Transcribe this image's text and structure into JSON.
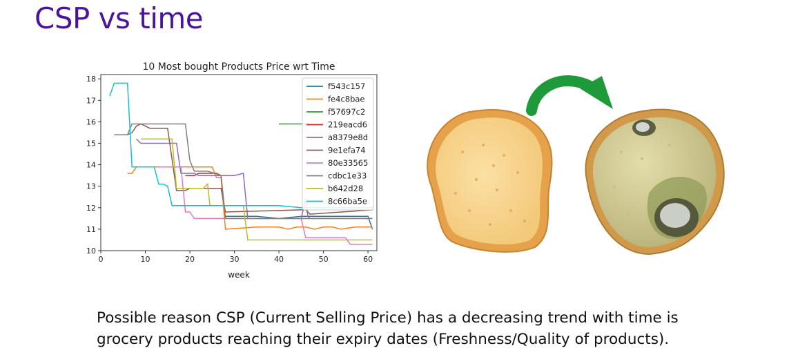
{
  "slide": {
    "title": "CSP vs time",
    "caption_line1": "Possible reason CSP (Current Selling Price) has a decreasing trend with time is",
    "caption_line2": "grocery products reaching their expiry dates (Freshness/Quality of products)."
  },
  "illustration": {
    "fresh_bread_icon": "fresh-bread-slice-icon",
    "arrow_icon": "curved-arrow-icon",
    "moldy_bread_icon": "moldy-bread-slice-icon",
    "arrow_color": "#1f9a3b"
  },
  "chart_data": {
    "type": "line",
    "title": "10 Most bought Products Price wrt Time",
    "xlabel": "week",
    "ylabel": "",
    "xlim": [
      0,
      62
    ],
    "ylim": [
      10,
      18.2
    ],
    "xticks": [
      0,
      10,
      20,
      30,
      40,
      50,
      60
    ],
    "yticks": [
      10,
      11,
      12,
      13,
      14,
      15,
      16,
      17,
      18
    ],
    "legend_position": "top-right",
    "grid": false,
    "series": [
      {
        "name": "f543c157",
        "color": "#1f77b4",
        "points": [
          [
            28,
            11.6
          ],
          [
            35,
            11.6
          ],
          [
            40,
            11.5
          ],
          [
            45,
            11.6
          ],
          [
            50,
            11.6
          ],
          [
            55,
            11.6
          ],
          [
            60,
            11.6
          ],
          [
            61,
            11.0
          ]
        ]
      },
      {
        "name": "fe4c8bae",
        "color": "#ff7f0e",
        "points": [
          [
            6,
            13.6
          ],
          [
            7,
            13.6
          ],
          [
            8,
            13.9
          ],
          [
            13,
            13.9
          ],
          [
            19,
            13.9
          ],
          [
            21,
            13.9
          ],
          [
            25,
            13.9
          ],
          [
            26,
            13.4
          ],
          [
            27,
            13.4
          ],
          [
            28,
            11.0
          ],
          [
            35,
            11.1
          ],
          [
            40,
            11.1
          ],
          [
            42,
            11.0
          ],
          [
            44,
            11.1
          ],
          [
            46,
            11.1
          ],
          [
            48,
            11.0
          ],
          [
            50,
            11.1
          ],
          [
            52,
            11.1
          ],
          [
            54,
            11.0
          ],
          [
            57,
            11.1
          ],
          [
            59,
            11.1
          ],
          [
            61,
            11.1
          ]
        ]
      },
      {
        "name": "f57697c2",
        "color": "#2ca02c",
        "points": [
          [
            40,
            15.9
          ],
          [
            47,
            15.9
          ]
        ]
      },
      {
        "name": "219eacd6",
        "color": "#d62728",
        "points": [
          [
            19,
            13.5
          ],
          [
            21,
            13.5
          ],
          [
            22,
            13.6
          ],
          [
            26,
            13.6
          ],
          [
            27,
            13.5
          ],
          [
            28,
            11.5
          ],
          [
            61,
            11.5
          ]
        ]
      },
      {
        "name": "a8379e8d",
        "color": "#9467bd",
        "points": [
          [
            8,
            15.2
          ],
          [
            9,
            15.0
          ],
          [
            15,
            15.0
          ],
          [
            17,
            15.0
          ],
          [
            18,
            13.6
          ],
          [
            21,
            13.6
          ],
          [
            22,
            13.5
          ],
          [
            26,
            13.5
          ],
          [
            30,
            13.5
          ],
          [
            32,
            13.6
          ],
          [
            33,
            11.5
          ],
          [
            45,
            11.5
          ],
          [
            46,
            12.4
          ],
          [
            46.5,
            11.6
          ],
          [
            47,
            11.5
          ],
          [
            61,
            11.5
          ]
        ]
      },
      {
        "name": "9e1efa74",
        "color": "#8c564b",
        "points": [
          [
            6,
            15.4
          ],
          [
            7,
            15.5
          ],
          [
            8,
            15.8
          ],
          [
            9,
            15.9
          ],
          [
            10,
            15.8
          ],
          [
            11,
            15.7
          ],
          [
            15,
            15.7
          ],
          [
            17,
            12.8
          ],
          [
            19,
            12.8
          ],
          [
            20,
            12.9
          ],
          [
            27,
            12.9
          ],
          [
            28,
            11.8
          ],
          [
            45,
            11.9
          ],
          [
            46,
            11.9
          ],
          [
            47,
            11.7
          ],
          [
            61,
            11.9
          ]
        ]
      },
      {
        "name": "80e33565",
        "color": "#e377c2",
        "points": [
          [
            13,
            13.9
          ],
          [
            18,
            13.9
          ],
          [
            19,
            11.8
          ],
          [
            20,
            11.8
          ],
          [
            21,
            11.5
          ],
          [
            28,
            11.5
          ],
          [
            45,
            11.5
          ],
          [
            46,
            10.6
          ],
          [
            47,
            10.6
          ],
          [
            48,
            10.6
          ],
          [
            55,
            10.6
          ],
          [
            56,
            10.3
          ],
          [
            61,
            10.3
          ]
        ]
      },
      {
        "name": "cdbc1e33",
        "color": "#7f7f7f",
        "points": [
          [
            3,
            15.4
          ],
          [
            6,
            15.4
          ],
          [
            7,
            15.9
          ],
          [
            19,
            15.9
          ],
          [
            20,
            14.2
          ],
          [
            21,
            13.7
          ],
          [
            24,
            13.7
          ],
          [
            27,
            13.5
          ],
          [
            28,
            11.5
          ],
          [
            61,
            11.5
          ]
        ]
      },
      {
        "name": "b642d28",
        "color": "#bcbd22",
        "points": [
          [
            9,
            15.2
          ],
          [
            16,
            15.2
          ],
          [
            17,
            12.9
          ],
          [
            23,
            12.9
          ],
          [
            24,
            13.1
          ],
          [
            24.5,
            12.1
          ],
          [
            25,
            12.1
          ],
          [
            27,
            12.1
          ],
          [
            28,
            12.1
          ],
          [
            32,
            12.1
          ],
          [
            33,
            10.5
          ],
          [
            61,
            10.5
          ]
        ]
      },
      {
        "name": "8c66ba5e",
        "color": "#17becf",
        "points": [
          [
            2,
            17.2
          ],
          [
            3,
            17.8
          ],
          [
            5,
            17.8
          ],
          [
            6,
            17.8
          ],
          [
            7,
            13.9
          ],
          [
            8,
            13.9
          ],
          [
            12,
            13.9
          ],
          [
            13,
            13.1
          ],
          [
            14,
            13.1
          ],
          [
            15,
            13.0
          ],
          [
            16,
            12.1
          ],
          [
            20,
            12.1
          ],
          [
            28,
            12.1
          ],
          [
            35,
            12.1
          ],
          [
            40,
            12.1
          ],
          [
            45,
            12.0
          ],
          [
            50,
            12.0
          ],
          [
            55,
            12.0
          ],
          [
            61,
            12.0
          ]
        ]
      }
    ]
  }
}
